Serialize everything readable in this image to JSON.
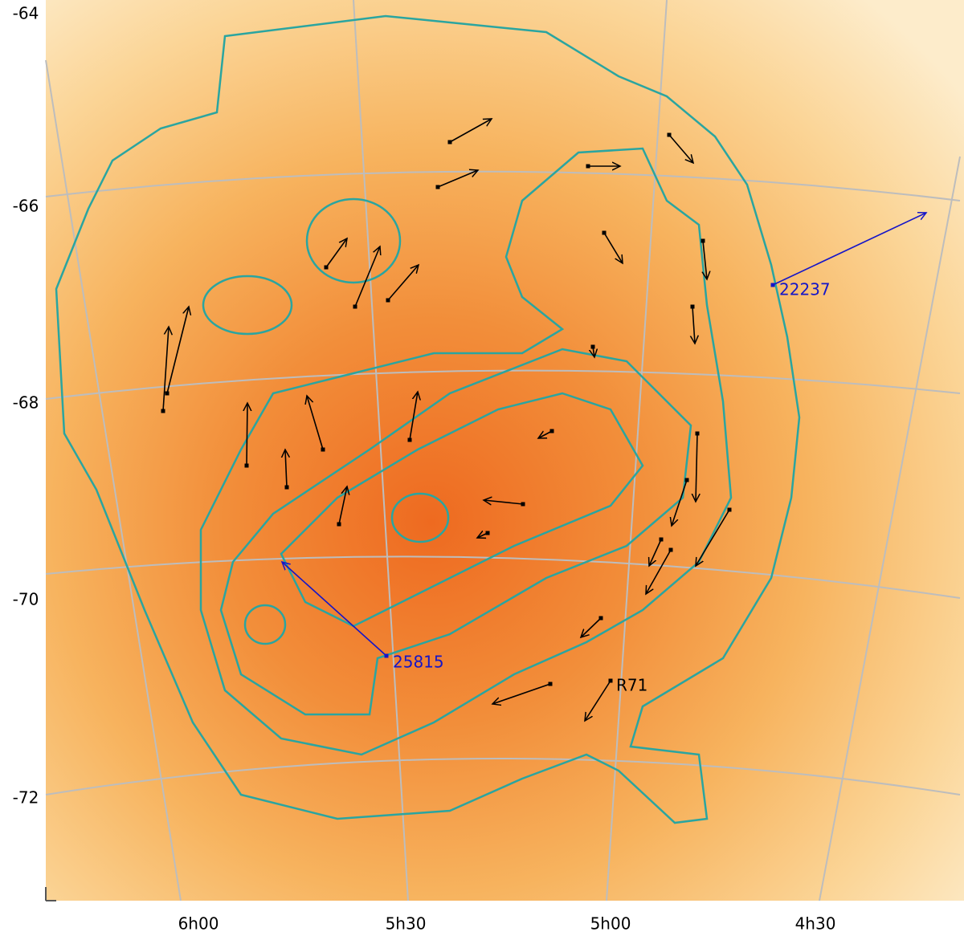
{
  "y_axis_labels": [
    "-64",
    "-66",
    "-68",
    "-70",
    "-72"
  ],
  "x_axis_labels": [
    "6h00",
    "5h30",
    "5h00",
    "4h30"
  ],
  "annotations": {
    "star_a": "22237",
    "star_b": "25815",
    "star_c": "R71"
  }
}
